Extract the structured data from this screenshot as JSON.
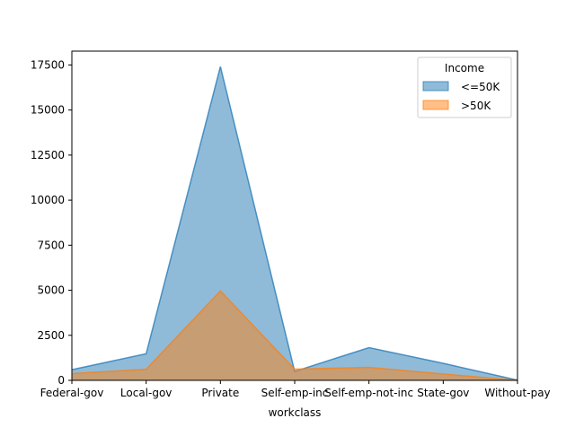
{
  "chart_data": {
    "type": "area",
    "categories": [
      "Federal-gov",
      "Local-gov",
      "Private",
      "Self-emp-inc",
      "Self-emp-not-inc",
      "State-gov",
      "Without-pay"
    ],
    "series": [
      {
        "name": "<=50K",
        "values": [
          589,
          1476,
          17411,
          494,
          1817,
          945,
          14
        ],
        "color": "#1f77b4"
      },
      {
        "name": ">50K",
        "values": [
          371,
          617,
          4963,
          622,
          724,
          353,
          0
        ],
        "color": "#ff7f0e"
      }
    ],
    "xlabel": "workclass",
    "ylabel": "",
    "ylim": [
      0,
      18269
    ],
    "yticks": [
      0,
      2500,
      5000,
      7500,
      10000,
      12500,
      15000,
      17500
    ],
    "ytick_labels": [
      "0",
      "2500",
      "5000",
      "7500",
      "10000",
      "12500",
      "15000",
      "17500"
    ],
    "legend": {
      "title": "Income",
      "placement": "top-right"
    },
    "stacked": false,
    "grid": false
  }
}
